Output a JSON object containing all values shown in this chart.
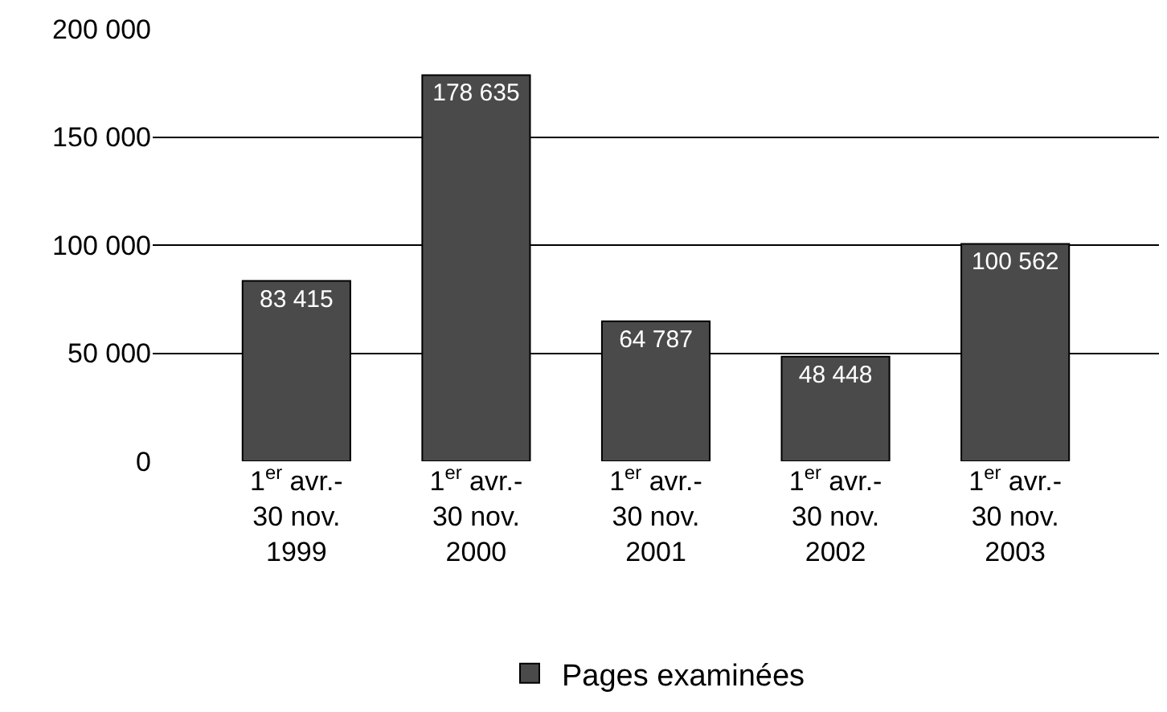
{
  "chart_data": {
    "type": "bar",
    "categories": [
      "1$^{er}$ avr.-\n30 nov.\n1999",
      "1$^{er}$ avr.-\n30 nov.\n2000",
      "1$^{er}$ avr.-\n30 nov.\n2001",
      "1$^{er}$ avr.-\n30 nov.\n2002",
      "1$^{er}$ avr.-\n30 nov.\n2003"
    ],
    "series": [
      {
        "name": "Pages examinées",
        "color": "#4a4a4a",
        "values": [
          83415,
          178635,
          64787,
          48448,
          100562
        ],
        "value_labels": [
          "83 415",
          "178 635",
          "64 787",
          "48 448",
          "100 562"
        ]
      }
    ],
    "ylim": [
      0,
      200000
    ],
    "yticks": [
      {
        "value": 0,
        "label": "0"
      },
      {
        "value": 50000,
        "label": "50 000"
      },
      {
        "value": 100000,
        "label": "100 000"
      },
      {
        "value": 150000,
        "label": "150 000"
      },
      {
        "value": 200000,
        "label": "200 000"
      }
    ],
    "grid": "y",
    "legend": "bottom"
  }
}
